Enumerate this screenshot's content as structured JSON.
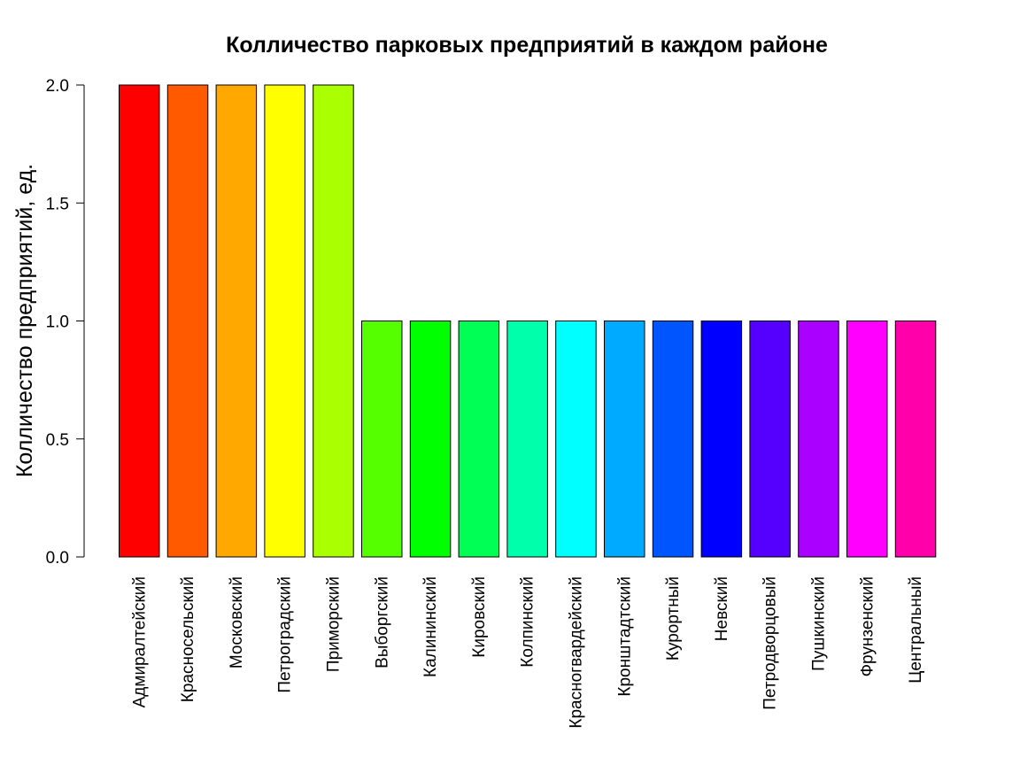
{
  "chart_data": {
    "type": "bar",
    "title": "Колличество парковых предприятий в каждом районе",
    "xlabel": "",
    "ylabel": "Колличество предприятий, ед.",
    "ylim": [
      0,
      2
    ],
    "yticks": [
      "0.0",
      "0.5",
      "1.0",
      "1.5",
      "2.0"
    ],
    "yticks_values": [
      0,
      0.5,
      1,
      1.5,
      2
    ],
    "grid": false,
    "legend": "none",
    "categories": [
      "Адмиралтейский",
      "Красносельский",
      "Московский",
      "Петроградский",
      "Приморский",
      "Выборгский",
      "Калининский",
      "Кировский",
      "Колпинский",
      "Красногвардейский",
      "Кронштадтский",
      "Курортный",
      "Невский",
      "Петродворцовый",
      "Пушкинский",
      "Фрунзенский",
      "Центральный"
    ],
    "values": [
      2,
      2,
      2,
      2,
      2,
      1,
      1,
      1,
      1,
      1,
      1,
      1,
      1,
      1,
      1,
      1,
      1
    ],
    "colors": [
      "#FF0000",
      "#FF5A00",
      "#FFA800",
      "#FFFF00",
      "#AAFF00",
      "#55FF00",
      "#00FF00",
      "#00FF55",
      "#00FFAA",
      "#00FFFF",
      "#00AAFF",
      "#0055FF",
      "#0000FF",
      "#5500FF",
      "#AA00FF",
      "#FF00FF",
      "#FF00AA"
    ],
    "bar_border_color": "#000000"
  }
}
